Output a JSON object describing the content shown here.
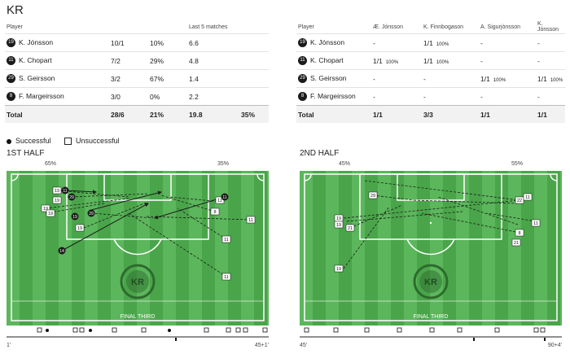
{
  "team": "KR",
  "table1": {
    "headers": [
      "Player",
      "",
      "",
      "Last 5 matches",
      ""
    ],
    "rows": [
      {
        "num": "19",
        "name": "K. Jónsson",
        "ratio": "10/1",
        "pct": "10%",
        "last": "6.6"
      },
      {
        "num": "11",
        "name": "K. Chopart",
        "ratio": "7/2",
        "pct": "29%",
        "last": "4.8"
      },
      {
        "num": "29",
        "name": "S. Geirsson",
        "ratio": "3/2",
        "pct": "67%",
        "last": "1.4"
      },
      {
        "num": "8",
        "name": "F. Margeirsson",
        "ratio": "3/0",
        "pct": "0%",
        "last": "2.2"
      }
    ],
    "total": {
      "label": "Total",
      "ratio": "28/6",
      "pct": "21%",
      "last": "19.8",
      "last_pct": "35%"
    }
  },
  "table2": {
    "headers": [
      "Player",
      "Æ. Jónsson",
      "K. Finnbogason",
      "A. Sigurjónsson",
      "K. Jónsson"
    ],
    "rows": [
      {
        "num": "19",
        "name": "K. Jónsson",
        "c1": "-",
        "c2": "1/1",
        "c2p": "100%",
        "c3": "-",
        "c3p": "",
        "c4": "-",
        "c4p": "",
        "c1p": ""
      },
      {
        "num": "11",
        "name": "K. Chopart",
        "c1": "1/1",
        "c1p": "100%",
        "c2": "1/1",
        "c2p": "100%",
        "c3": "-",
        "c3p": "",
        "c4": "-",
        "c4p": ""
      },
      {
        "num": "29",
        "name": "S. Geirsson",
        "c1": "-",
        "c1p": "",
        "c2": "-",
        "c2p": "",
        "c3": "1/1",
        "c3p": "100%",
        "c4": "1/1",
        "c4p": "100%"
      },
      {
        "num": "8",
        "name": "F. Margeirsson",
        "c1": "-",
        "c1p": "",
        "c2": "-",
        "c2p": "",
        "c3": "-",
        "c3p": "",
        "c4": "-",
        "c4p": ""
      }
    ],
    "total": {
      "label": "Total",
      "c1": "1/1",
      "c2": "3/3",
      "c3": "1/1",
      "c4": "1/1"
    }
  },
  "legend": {
    "successful": "Successful",
    "unsuccessful": "Unsuccessful"
  },
  "half1": {
    "title": "1ST HALF",
    "left_pct": "65%",
    "right_pct": "35%",
    "zone": "FINAL THIRD",
    "t_start": "1'",
    "t_end": "45+1'"
  },
  "half2": {
    "title": "2ND HALF",
    "left_pct": "45%",
    "right_pct": "55%",
    "zone": "FINAL THIRD",
    "t_start": "45'",
    "t_end": "90+4'"
  },
  "logo_text": "KR",
  "colors": {
    "pitch_dark": "#4aa54a",
    "pitch_light": "#5cb65c",
    "line": "#ffffff",
    "ink": "#1b1b1b"
  }
}
